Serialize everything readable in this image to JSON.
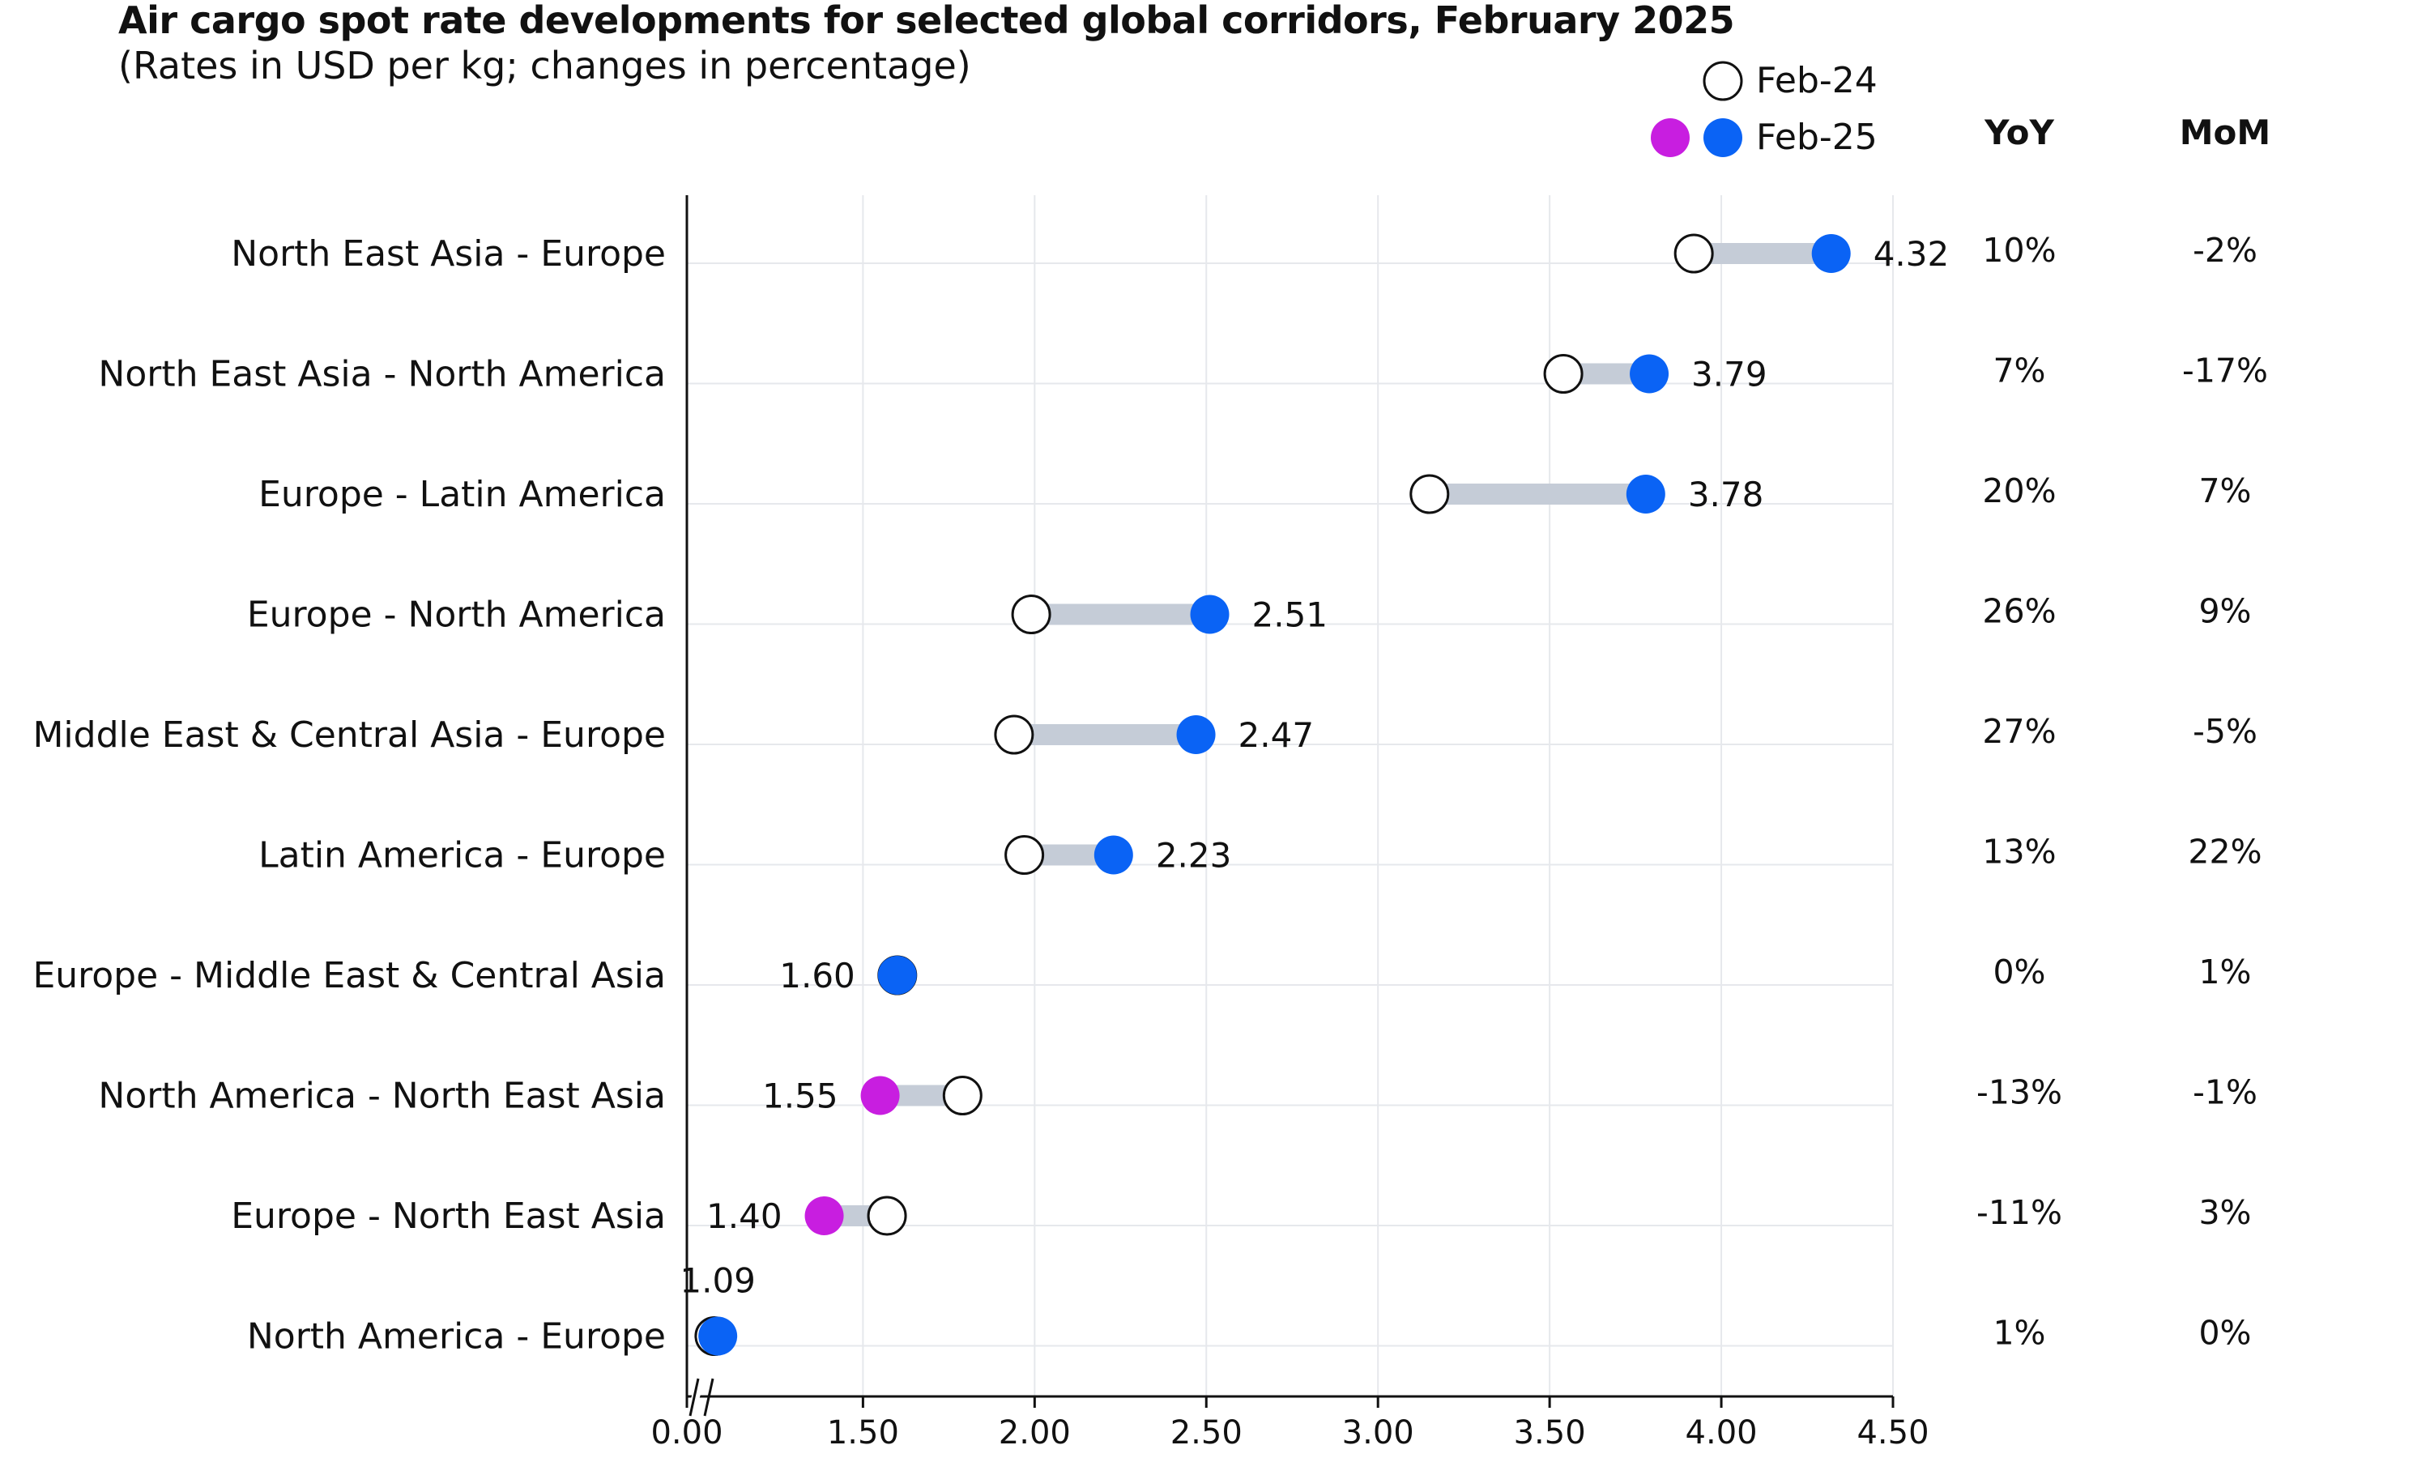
{
  "chart_data": {
    "type": "dumbbell",
    "title": "Air cargo spot rate developments for selected global corridors, February 2025",
    "subtitle": "(Rates in USD per kg; changes in percentage)",
    "xlim": [
      0.0,
      4.5
    ],
    "x_tick_labels": [
      "0.00",
      "1.50",
      "2.00",
      "2.50",
      "3.00",
      "3.50",
      "4.00",
      "4.50"
    ],
    "axis_break": true,
    "grid": true,
    "legend": {
      "position": "top-right",
      "items": [
        {
          "label": "Feb-24",
          "marker": "hollow-circle"
        },
        {
          "label": "Feb-25",
          "marker": "filled-circle",
          "colors": [
            "#c81ee0",
            "#0a63f5"
          ]
        }
      ]
    },
    "column_headers": {
      "yoy": "YoY",
      "mom": "MoM"
    },
    "colors": {
      "increase": "#0a63f5",
      "decrease": "#c81ee0",
      "connector": "#c5ccd7",
      "grid": "#e6e8ec",
      "axis": "#111111"
    },
    "rows": [
      {
        "corridor": "North East Asia - Europe",
        "feb24": 3.92,
        "feb25": 4.32,
        "label": "4.32",
        "yoy": "10%",
        "mom": "-2%"
      },
      {
        "corridor": "North East Asia - North America",
        "feb24": 3.54,
        "feb25": 3.79,
        "label": "3.79",
        "yoy": "7%",
        "mom": "-17%"
      },
      {
        "corridor": "Europe - Latin America",
        "feb24": 3.15,
        "feb25": 3.78,
        "label": "3.78",
        "yoy": "20%",
        "mom": "7%"
      },
      {
        "corridor": "Europe - North America",
        "feb24": 1.99,
        "feb25": 2.51,
        "label": "2.51",
        "yoy": "26%",
        "mom": "9%"
      },
      {
        "corridor": "Middle East & Central Asia - Europe",
        "feb24": 1.94,
        "feb25": 2.47,
        "label": "2.47",
        "yoy": "27%",
        "mom": "-5%"
      },
      {
        "corridor": "Latin America - Europe",
        "feb24": 1.97,
        "feb25": 2.23,
        "label": "2.23",
        "yoy": "13%",
        "mom": "22%"
      },
      {
        "corridor": "Europe - Middle East & Central Asia",
        "feb24": 1.6,
        "feb25": 1.6,
        "label": "1.60",
        "yoy": "0%",
        "mom": "1%"
      },
      {
        "corridor": "North America - North East Asia",
        "feb24": 1.79,
        "feb25": 1.55,
        "label": "1.55",
        "yoy": "-13%",
        "mom": "-1%"
      },
      {
        "corridor": "Europe - North East Asia",
        "feb24": 1.57,
        "feb25": 1.4,
        "label": "1.40",
        "yoy": "-11%",
        "mom": "3%"
      },
      {
        "corridor": "North America - Europe",
        "feb24": 1.08,
        "feb25": 1.09,
        "label": "1.09",
        "yoy": "1%",
        "mom": "0%"
      }
    ]
  }
}
